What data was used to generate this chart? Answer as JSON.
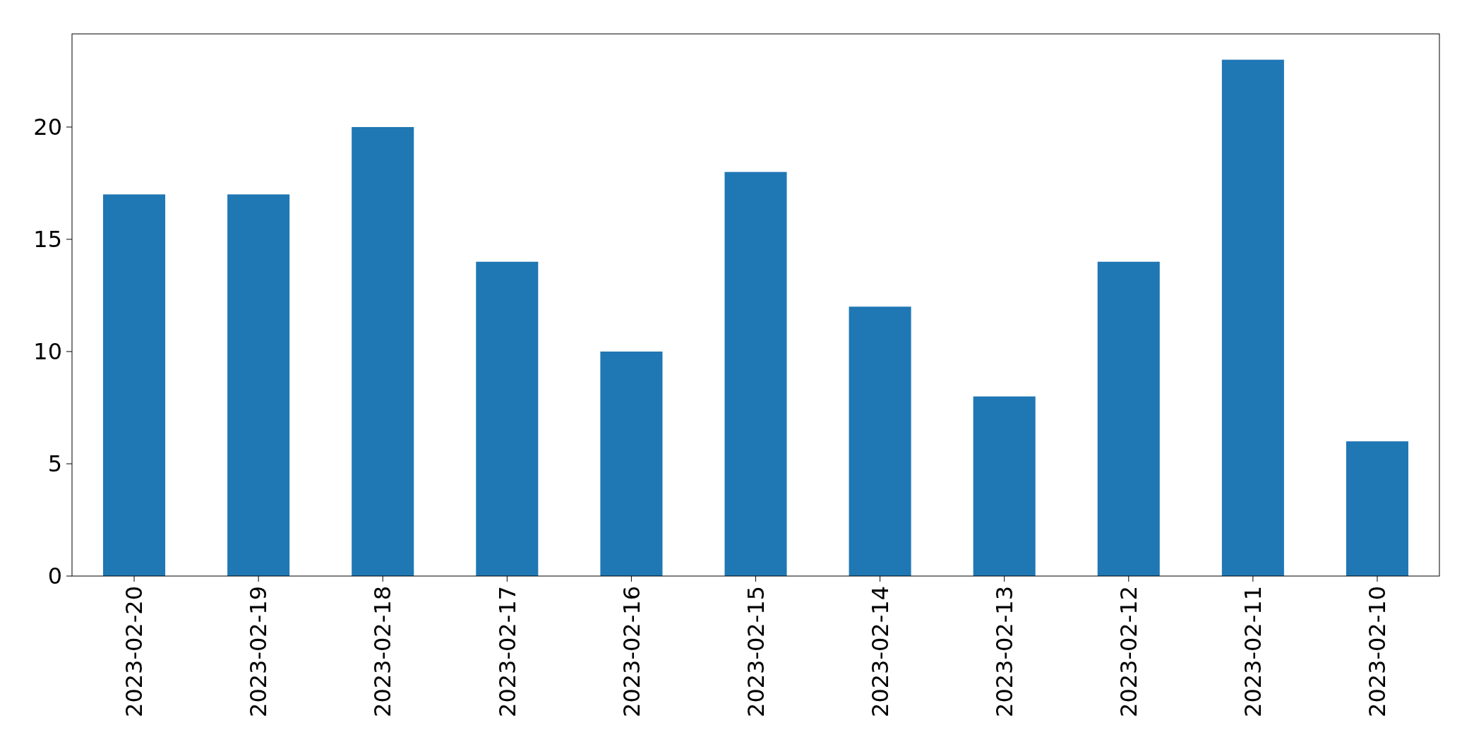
{
  "chart_data": {
    "type": "bar",
    "categories": [
      "2023-02-20",
      "2023-02-19",
      "2023-02-18",
      "2023-02-17",
      "2023-02-16",
      "2023-02-15",
      "2023-02-14",
      "2023-02-13",
      "2023-02-12",
      "2023-02-11",
      "2023-02-10"
    ],
    "values": [
      17,
      17,
      20,
      14,
      10,
      18,
      12,
      8,
      14,
      23,
      6
    ],
    "color": "#1f77b4",
    "ylim": [
      0,
      24.15
    ],
    "yticks": [
      0,
      5,
      10,
      15,
      20
    ],
    "grid": false
  }
}
